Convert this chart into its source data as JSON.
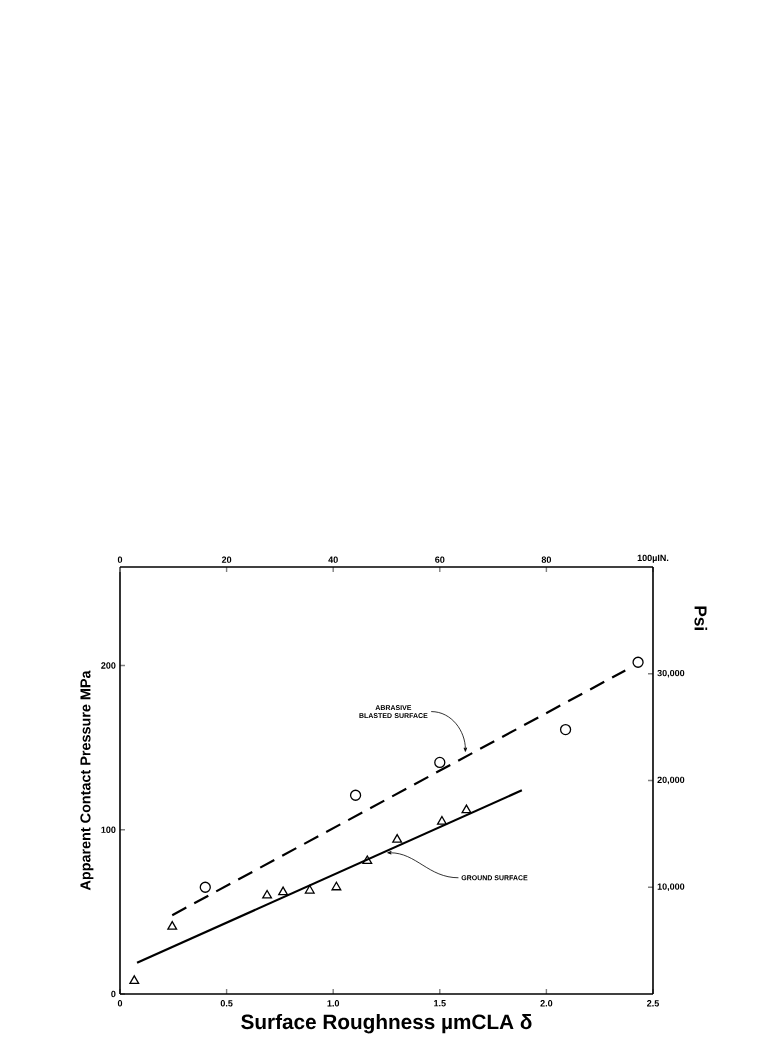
{
  "chart_data": {
    "type": "scatter",
    "xlabel": "Surface Roughness µmCLA δ",
    "ylabel": "Apparent Contact Pressure MPa",
    "y2label": "Psi",
    "xlim": [
      0,
      2.5
    ],
    "xticks": [
      0,
      0.5,
      {
        "value": 1,
        "label": "1.0"
      },
      1.5,
      {
        "value": 2,
        "label": "2.0"
      },
      2.5
    ],
    "ylim": [
      0,
      260
    ],
    "yticks": [
      0,
      100,
      200
    ],
    "x2lim": [
      0,
      100
    ],
    "x2ticks": [
      0,
      20,
      40,
      60,
      80,
      {
        "value": 100,
        "label": "100µIN."
      }
    ],
    "y2lim": [
      0,
      40000
    ],
    "y2ticks": [
      {
        "value": 10000,
        "label": "10,000"
      },
      {
        "value": 20000,
        "label": "20,000"
      },
      {
        "value": 30000,
        "label": "30,000"
      }
    ],
    "series": [
      {
        "marker": "triangle",
        "color": "#000000",
        "x": [
          0.067,
          0.245,
          0.69,
          0.765,
          0.89,
          1.015,
          1.16,
          1.3,
          1.51,
          1.625
        ],
        "values": [
          8,
          41,
          60,
          62,
          63,
          65,
          81,
          94,
          105,
          112
        ]
      },
      {
        "marker": "circle",
        "color": "#000000",
        "x": [
          0.4,
          1.105,
          1.5,
          2.09,
          2.43
        ],
        "values": [
          65,
          121,
          141,
          161,
          202
        ]
      },
      {
        "type": "line",
        "line_style": "dashed",
        "marker": "none",
        "color": "#000000",
        "x": [
          0.245,
          2.37
        ],
        "values": [
          48,
          197
        ]
      },
      {
        "type": "line",
        "line_style": "solid",
        "marker": "none",
        "color": "#000000",
        "x": [
          0.08,
          1.885
        ],
        "values": [
          19,
          124
        ]
      }
    ],
    "annotations": [
      {
        "text": "ABRASIVE BLASTED SURFACE",
        "x": 1.62,
        "y": 147
      },
      {
        "text": "GROUND SURFACE",
        "x": 1.25,
        "y": 86
      }
    ]
  }
}
